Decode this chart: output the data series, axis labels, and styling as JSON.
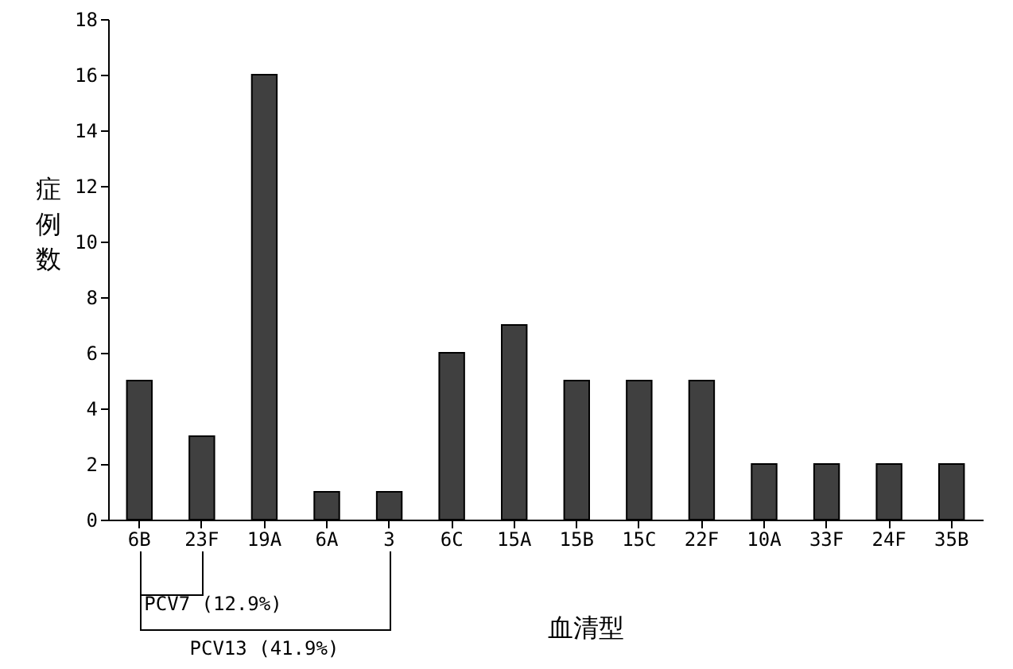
{
  "chart_data": {
    "type": "bar",
    "xlabel": "血清型",
    "ylabel": "症例数",
    "categories": [
      "6B",
      "23F",
      "19A",
      "6A",
      "3",
      "6C",
      "15A",
      "15B",
      "15C",
      "22F",
      "10A",
      "33F",
      "24F",
      "35B"
    ],
    "values": [
      5,
      3,
      16,
      1,
      1,
      6,
      7,
      5,
      5,
      5,
      2,
      2,
      2,
      2
    ],
    "color": "#404040",
    "ylim": [
      0,
      18
    ],
    "yticks": [
      0,
      2,
      4,
      6,
      8,
      10,
      12,
      14,
      16,
      18
    ],
    "grid": false,
    "annotations": [
      "PCV7 (12.9%)",
      "PCV13 (41.9%)"
    ]
  }
}
